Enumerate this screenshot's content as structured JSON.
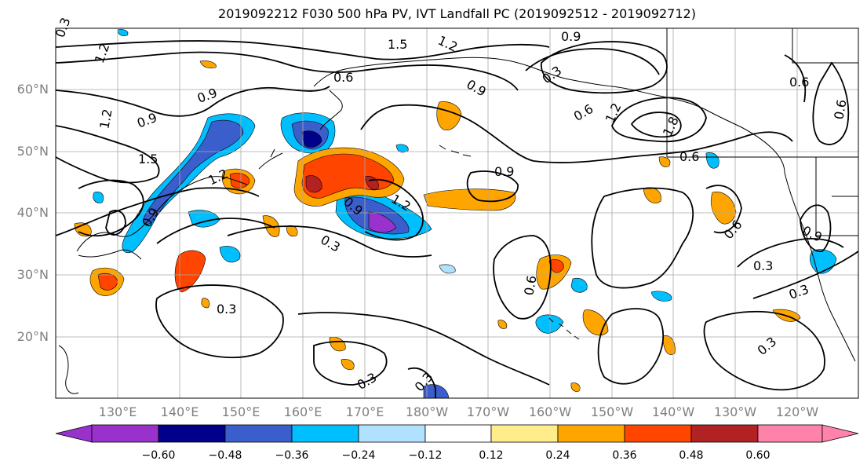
{
  "title": "2019092212 F030 500 hPa PV, IVT Landfall PC (2019092512 - 2019092712)",
  "lat_ticks": [
    "60°N",
    "50°N",
    "40°N",
    "30°N",
    "20°N"
  ],
  "lon_ticks": [
    "130°E",
    "140°E",
    "150°E",
    "160°E",
    "170°E",
    "180°W",
    "170°W",
    "160°W",
    "150°W",
    "140°W",
    "130°W",
    "120°W"
  ],
  "contour_labels": [
    "1.2",
    "1.5",
    "1.2",
    "0.9",
    "0.6",
    "0.9",
    "0.3",
    "0.9",
    "0.6",
    "1.2",
    "1.8",
    "0.6",
    "0.9",
    "0.6",
    "1.2",
    "0.9",
    "1.5",
    "1.2",
    "0.9",
    "0.9",
    "1.2",
    "0.6",
    "0.3",
    "0.3",
    "0.6",
    "0.6",
    "0.3",
    "0.9",
    "0.3",
    "0.3",
    "0.3",
    "0.3",
    "0.3"
  ],
  "colorbar": {
    "colors": [
      "#9932cc",
      "#00008b",
      "#3a5fcd",
      "#00bfff",
      "#b0e2ff",
      "#ffffff",
      "#ffec8b",
      "#ffa500",
      "#ff4500",
      "#b22222",
      "#ff82ab"
    ],
    "tick_labels": [
      "−0.60",
      "−0.48",
      "−0.36",
      "−0.24",
      "−0.12",
      "0.12",
      "0.24",
      "0.36",
      "0.48",
      "0.60"
    ],
    "extend": "both"
  }
}
